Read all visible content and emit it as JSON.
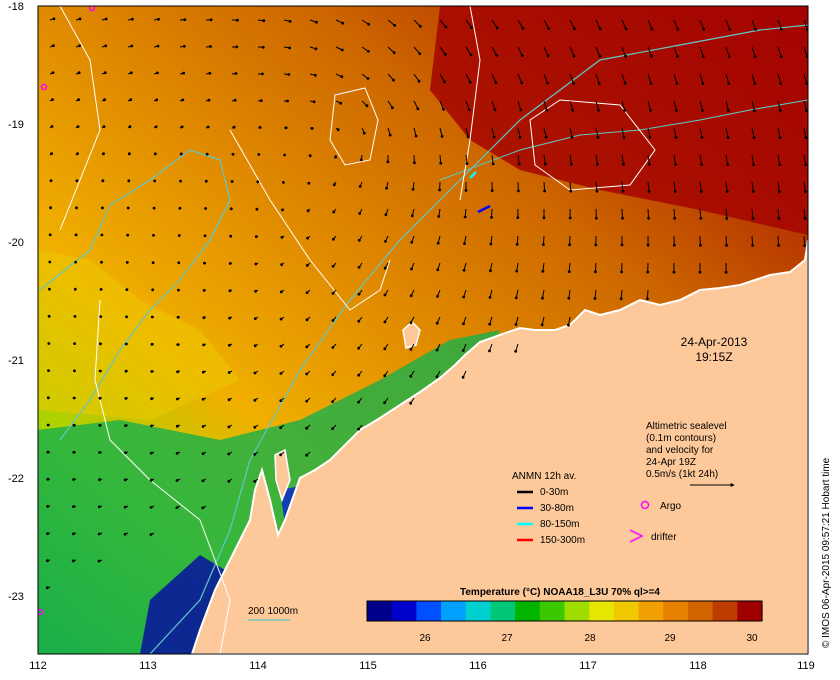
{
  "map": {
    "lat_ticks": [
      "-18",
      "-19",
      "-20",
      "-21",
      "-22",
      "-23"
    ],
    "lon_ticks": [
      "112",
      "113",
      "114",
      "115",
      "116",
      "117",
      "118",
      "119"
    ],
    "date": "24-Apr-2013",
    "time": "19:15Z"
  },
  "annotation": {
    "lines": [
      "Altimetric sealevel",
      "(0.1m contours)",
      "and velocity for",
      "24-Apr 19Z",
      "0.5m/s (1kt 24h)"
    ]
  },
  "legend": {
    "title": "ANMN 12h av.",
    "items": [
      {
        "label": "0-30m",
        "color": "#000000"
      },
      {
        "label": "30-80m",
        "color": "#0000ff"
      },
      {
        "label": "80-150m",
        "color": "#00ffff"
      },
      {
        "label": "150-300m",
        "color": "#ff0000"
      }
    ],
    "argo_label": "Argo",
    "drifter_label": "drifter",
    "argo_color": "#ff00ff",
    "drifter_color": "#ff00ff"
  },
  "isobath": {
    "label": "200  1000m",
    "color": "#5fc8c8"
  },
  "colorbar": {
    "title": "Temperature (°C) NOAA18_L3U 70% ql>=4",
    "ticks": [
      "26",
      "27",
      "28",
      "29",
      "30"
    ],
    "colors": [
      "#00008b",
      "#0000cd",
      "#0050ff",
      "#00a0ff",
      "#00d0d0",
      "#00c878",
      "#00b400",
      "#3cc800",
      "#a0dc00",
      "#e6e600",
      "#f0c800",
      "#f0a000",
      "#e68200",
      "#d26400",
      "#be3c00",
      "#a00000"
    ]
  },
  "credit": "© IMOS 06-Apr-2015 09:57:21 Hobart time"
}
